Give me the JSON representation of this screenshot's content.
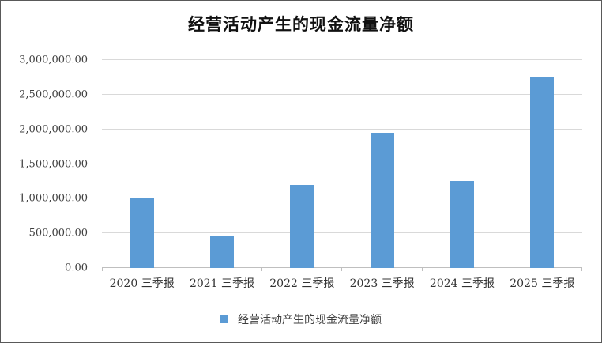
{
  "chart_data": {
    "type": "bar",
    "title": "经营活动产生的现金流量净额",
    "categories": [
      "2020 三季报",
      "2021 三季报",
      "2022 三季报",
      "2023 三季报",
      "2024 三季报",
      "2025 三季报"
    ],
    "values": [
      1000000,
      460000,
      1200000,
      1950000,
      1250000,
      2750000
    ],
    "xlabel": "",
    "ylabel": "",
    "ylim": [
      0,
      3000000
    ],
    "ytick_step": 500000,
    "ytick_labels": [
      "0.00",
      "500,000.00",
      "1,000,000.00",
      "1,500,000.00",
      "2,000,000.00",
      "2,500,000.00",
      "3,000,000.00"
    ],
    "grid": true,
    "legend": [
      "经营活动产生的现金流量净额"
    ],
    "legend_position": "bottom",
    "colors": {
      "bar": "#5b9bd5",
      "gridline": "#d9d9d9",
      "axis_line": "#bfbfbf",
      "axis_text": "#3f3f3f",
      "title_text": "#111111"
    }
  }
}
